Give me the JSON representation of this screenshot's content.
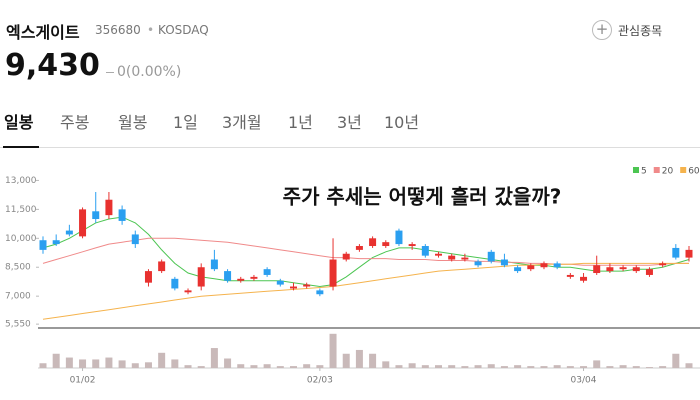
{
  "header": {
    "name": "엑스게이트",
    "code": "356680",
    "separator": "•",
    "market": "KOSDAQ",
    "watch_button": "관심종목",
    "price": "9,430",
    "change": "0(0.00%)"
  },
  "tabs": [
    "일봉",
    "주봉",
    "월봉",
    "1일",
    "3개월",
    "1년",
    "3년",
    "10년"
  ],
  "chart_data": {
    "type": "candlestick",
    "title": "주가 추세는 어떻게 흘러 갔을까?",
    "categories": [
      null,
      null,
      null,
      "01/02",
      null,
      null,
      null,
      null,
      null,
      null,
      null,
      null,
      null,
      null,
      null,
      null,
      null,
      null,
      null,
      null,
      null,
      "02/03",
      null,
      null,
      null,
      null,
      null,
      null,
      null,
      null,
      null,
      null,
      null,
      null,
      null,
      null,
      null,
      null,
      null,
      null,
      null,
      "03/04",
      null,
      null,
      null,
      null,
      null,
      null,
      null,
      null
    ],
    "open": [
      9900,
      9900,
      10400,
      10100,
      11400,
      11200,
      11500,
      10200,
      7700,
      8300,
      7900,
      7200,
      7500,
      8900,
      8300,
      7800,
      7900,
      8400,
      7800,
      7400,
      7500,
      7300,
      7500,
      8900,
      9400,
      9600,
      9600,
      10400,
      9600,
      9600,
      9100,
      8900,
      8900,
      8800,
      9300,
      8900,
      8500,
      8400,
      8500,
      8700,
      8000,
      7800,
      8200,
      8300,
      8400,
      8300,
      8100,
      8600,
      9500,
      9000
    ],
    "high": [
      10100,
      10200,
      10700,
      11600,
      12400,
      12400,
      11700,
      10400,
      8400,
      8900,
      8000,
      7400,
      8700,
      9400,
      8400,
      8000,
      8100,
      8500,
      7900,
      7700,
      7700,
      7400,
      10000,
      9300,
      9700,
      10100,
      9900,
      10500,
      9800,
      9700,
      9300,
      9200,
      9200,
      8900,
      9400,
      9200,
      8600,
      8700,
      8800,
      8800,
      8200,
      8200,
      9100,
      8700,
      8600,
      8600,
      8500,
      8800,
      9700,
      9600
    ],
    "low": [
      9200,
      9600,
      10100,
      10000,
      10800,
      11000,
      10700,
      9500,
      7500,
      8200,
      7300,
      7100,
      7300,
      8300,
      7700,
      7700,
      7800,
      8000,
      7500,
      7300,
      7400,
      7000,
      7300,
      8800,
      9300,
      9500,
      9500,
      9600,
      9400,
      9000,
      9000,
      8800,
      8800,
      8500,
      8700,
      8500,
      8200,
      8300,
      8400,
      8400,
      7900,
      7700,
      8100,
      8200,
      8300,
      8200,
      8000,
      8500,
      8900,
      8800
    ],
    "close": [
      9400,
      9700,
      10200,
      11500,
      11000,
      12000,
      10900,
      9700,
      8300,
      8800,
      7400,
      7300,
      8500,
      8400,
      7800,
      7900,
      8000,
      8100,
      7600,
      7500,
      7600,
      7100,
      8900,
      9200,
      9600,
      10000,
      9800,
      9700,
      9700,
      9100,
      9200,
      9100,
      9000,
      8600,
      8800,
      8600,
      8300,
      8600,
      8700,
      8500,
      8100,
      8000,
      8600,
      8500,
      8500,
      8500,
      8400,
      8700,
      9000,
      9400
    ],
    "up_color": "#e8312f",
    "down_color": "#2a9ff0",
    "series": [
      {
        "name": "5",
        "color": "#4cc552",
        "values": [
          9500,
          9700,
          10000,
          10400,
          10800,
          11000,
          11100,
          10800,
          10200,
          9400,
          8700,
          8200,
          8000,
          7900,
          7800,
          7800,
          7800,
          7800,
          7800,
          7700,
          7600,
          7500,
          7600,
          8000,
          8500,
          9000,
          9300,
          9500,
          9500,
          9400,
          9300,
          9200,
          9100,
          9000,
          8900,
          8800,
          8700,
          8600,
          8600,
          8500,
          8500,
          8400,
          8300,
          8300,
          8300,
          8400,
          8400,
          8500,
          8700,
          8900
        ]
      },
      {
        "name": "20",
        "color": "#f08a8a",
        "values": [
          8700,
          8900,
          9100,
          9300,
          9500,
          9700,
          9800,
          9900,
          10000,
          10000,
          10000,
          9950,
          9900,
          9850,
          9800,
          9700,
          9600,
          9500,
          9400,
          9300,
          9200,
          9100,
          9000,
          9000,
          8950,
          8950,
          8950,
          8900,
          8900,
          8900,
          8850,
          8850,
          8850,
          8800,
          8800,
          8750,
          8750,
          8700,
          8700,
          8650,
          8650,
          8600,
          8600,
          8600,
          8600,
          8600,
          8600,
          8650,
          8700,
          8700
        ]
      },
      {
        "name": "60",
        "color": "#f5b34d",
        "values": [
          5800,
          5900,
          6000,
          6100,
          6200,
          6300,
          6400,
          6500,
          6600,
          6700,
          6800,
          6900,
          7000,
          7050,
          7100,
          7150,
          7200,
          7250,
          7300,
          7350,
          7400,
          7450,
          7500,
          7600,
          7700,
          7800,
          7900,
          8000,
          8100,
          8200,
          8300,
          8350,
          8400,
          8450,
          8500,
          8550,
          8600,
          8600,
          8650,
          8650,
          8650,
          8700,
          8700,
          8700,
          8700,
          8700,
          8700,
          8700,
          8700,
          8700
        ]
      }
    ],
    "volume": [
      5,
      15,
      11,
      9,
      9,
      11,
      8,
      5,
      6,
      16,
      9,
      3,
      2,
      21,
      10,
      4,
      3,
      4,
      2,
      2,
      4,
      3,
      36,
      15,
      19,
      15,
      7,
      3,
      5,
      3,
      3,
      3,
      2,
      3,
      4,
      2,
      3,
      2,
      2,
      3,
      2,
      2,
      8,
      2,
      3,
      2,
      1,
      2,
      15,
      5
    ],
    "volume_color": "#c9b9b9",
    "volume_ylim": [
      0,
      40
    ],
    "ylim": [
      5350,
      13800
    ],
    "yticks": [
      {
        "value": 13000,
        "label": "13,000"
      },
      {
        "value": 11500,
        "label": "11,500"
      },
      {
        "value": 10000,
        "label": "10,000"
      },
      {
        "value": 8500,
        "label": "8,500"
      },
      {
        "value": 7000,
        "label": "7,000"
      },
      {
        "value": 5550,
        "label": "5,550"
      }
    ]
  }
}
